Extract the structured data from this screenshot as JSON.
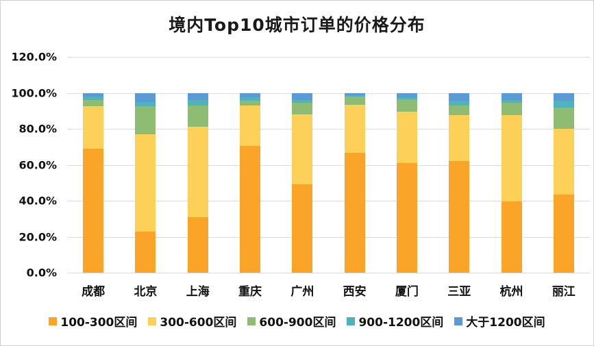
{
  "chart_data": {
    "type": "bar",
    "stacked": true,
    "title": "境内Top10城市订单的价格分布",
    "categories": [
      "成都",
      "北京",
      "上海",
      "重庆",
      "广州",
      "西安",
      "厦门",
      "三亚",
      "杭州",
      "丽江"
    ],
    "series": [
      {
        "name": "100-300区间",
        "color": "#FAA528",
        "values": [
          69.0,
          23.0,
          31.0,
          70.5,
          49.3,
          66.5,
          61.0,
          62.0,
          39.5,
          43.5
        ]
      },
      {
        "name": "300-600区间",
        "color": "#FDD157",
        "values": [
          23.5,
          54.0,
          50.0,
          22.5,
          38.7,
          27.0,
          28.5,
          25.5,
          48.0,
          36.5
        ]
      },
      {
        "name": "600-900区间",
        "color": "#8FBC73",
        "values": [
          3.5,
          15.5,
          12.0,
          2.5,
          6.4,
          4.3,
          7.0,
          5.3,
          7.0,
          12.0
        ]
      },
      {
        "name": "900-1200区间",
        "color": "#4EB3BC",
        "values": [
          2.0,
          2.5,
          3.0,
          2.0,
          1.5,
          1.0,
          1.0,
          2.9,
          1.5,
          3.7
        ]
      },
      {
        "name": "大于1200区间",
        "color": "#5B9BD5",
        "values": [
          2.0,
          5.0,
          4.0,
          2.5,
          4.1,
          1.2,
          2.5,
          4.3,
          4.0,
          4.3
        ]
      }
    ],
    "xlabel": "",
    "ylabel": "",
    "ylim": [
      0,
      120
    ],
    "y_tick_step": 20,
    "y_tick_labels": [
      "0.0%",
      "20.0%",
      "40.0%",
      "60.0%",
      "80.0%",
      "100.0%",
      "120.0%"
    ],
    "grid": true,
    "legend_position": "bottom",
    "gridline_color": "#dcdcdc"
  }
}
